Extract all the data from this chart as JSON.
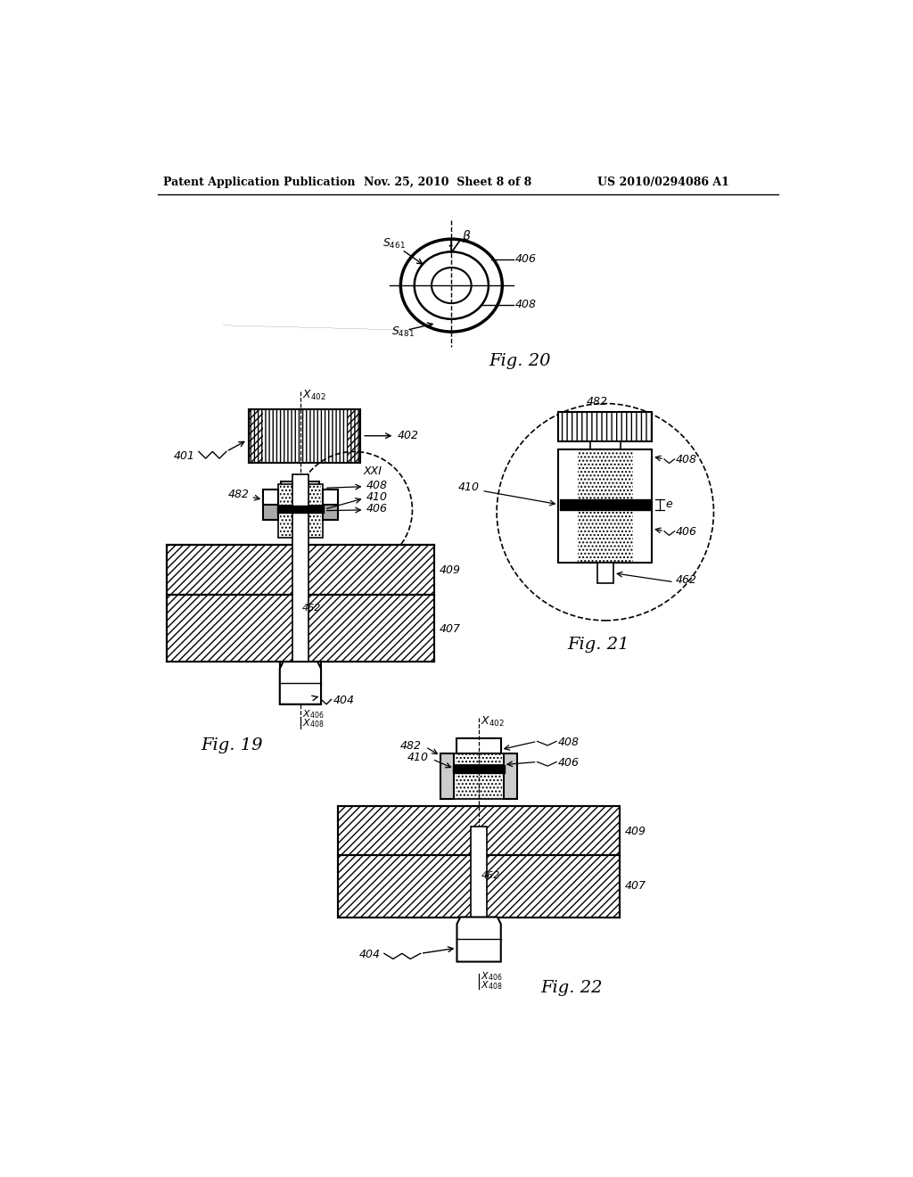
{
  "header_left": "Patent Application Publication",
  "header_mid": "Nov. 25, 2010  Sheet 8 of 8",
  "header_right": "US 2010/0294086 A1",
  "fig20_title": "Fig. 20",
  "fig19_title": "Fig. 19",
  "fig21_title": "Fig. 21",
  "fig22_title": "Fig. 22",
  "bg_color": "#ffffff"
}
